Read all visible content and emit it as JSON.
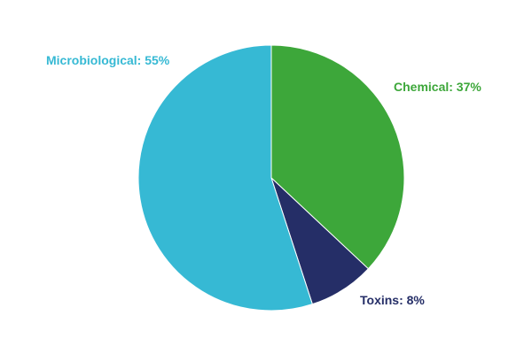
{
  "chart_data": {
    "type": "pie",
    "slices": [
      {
        "category": "Chemical",
        "value": 37,
        "label": "Chemical: 37%",
        "color": "#3da73a"
      },
      {
        "category": "Toxins",
        "value": 8,
        "label": "Toxins: 8%",
        "color": "#252e67"
      },
      {
        "category": "Microbiological",
        "value": 55,
        "label": "Microbiological: 55%",
        "color": "#36b9d4"
      }
    ],
    "start_angle": "12 o'clock",
    "direction": "clockwise",
    "legend": "none",
    "slice_border_color": "#ffffff"
  }
}
